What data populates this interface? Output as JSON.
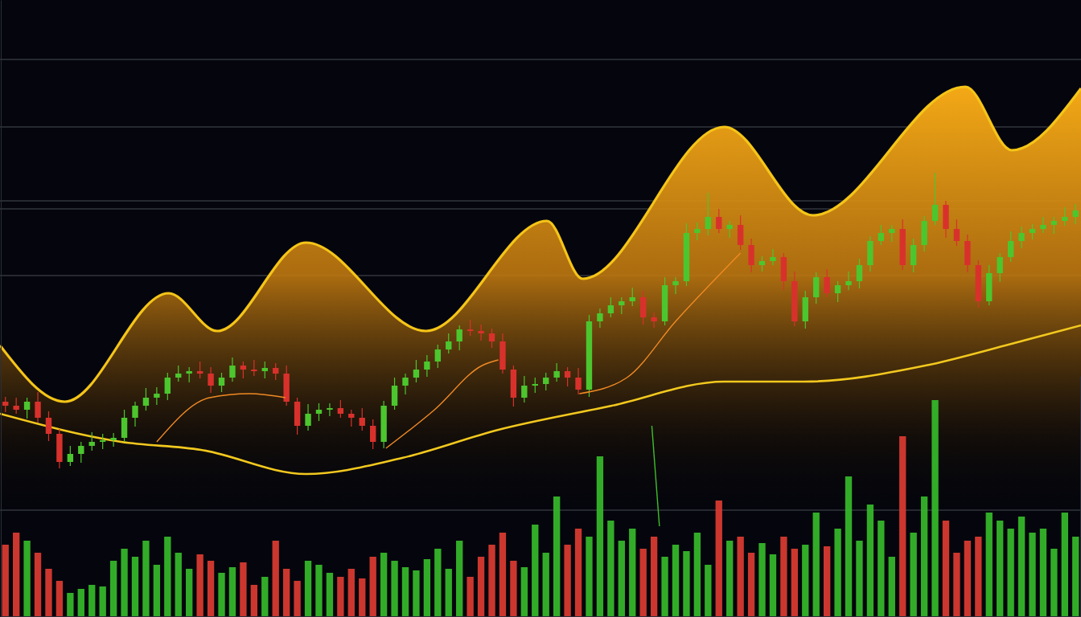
{
  "chart_data": {
    "type": "candlestick",
    "grid": true,
    "tick_labels": false,
    "xlim": [
      -0.5,
      99.5
    ],
    "ylim": [
      0,
      768
    ],
    "yticks": [
      694,
      610,
      518,
      508,
      425,
      133
    ],
    "y2lim": [
      0,
      300
    ],
    "x": [
      0,
      1,
      2,
      3,
      4,
      5,
      6,
      7,
      8,
      9,
      10,
      11,
      12,
      13,
      14,
      15,
      16,
      17,
      18,
      19,
      20,
      21,
      22,
      23,
      24,
      25,
      26,
      27,
      28,
      29,
      30,
      31,
      32,
      33,
      34,
      35,
      36,
      37,
      38,
      39,
      40,
      41,
      42,
      43,
      44,
      45,
      46,
      47,
      48,
      49,
      50,
      51,
      52,
      53,
      54,
      55,
      56,
      57,
      58,
      59,
      60,
      61,
      62,
      63,
      64,
      65,
      66,
      67,
      68,
      69,
      70,
      71,
      72,
      73,
      74,
      75,
      76,
      77,
      78,
      79,
      80,
      81,
      82,
      83,
      84,
      85,
      86,
      87,
      88,
      89,
      90,
      91,
      92,
      93,
      94,
      95,
      96,
      97,
      98,
      99
    ],
    "open": [
      268,
      263,
      258,
      268,
      248,
      228,
      193,
      203,
      213,
      218,
      220,
      223,
      248,
      263,
      273,
      278,
      298,
      303,
      306,
      303,
      288,
      298,
      313,
      308,
      306,
      310,
      303,
      268,
      238,
      253,
      258,
      260,
      253,
      248,
      238,
      218,
      263,
      288,
      298,
      308,
      318,
      333,
      343,
      358,
      356,
      353,
      343,
      308,
      273,
      288,
      290,
      298,
      306,
      298,
      283,
      368,
      378,
      388,
      393,
      398,
      373,
      368,
      413,
      418,
      478,
      483,
      498,
      483,
      488,
      463,
      438,
      443,
      448,
      418,
      368,
      398,
      423,
      403,
      413,
      418,
      438,
      468,
      478,
      483,
      438,
      463,
      493,
      513,
      483,
      468,
      438,
      393,
      428,
      448,
      468,
      478,
      483,
      488,
      493,
      498
    ],
    "high": [
      274,
      273,
      273,
      280,
      256,
      234,
      213,
      218,
      230,
      228,
      229,
      258,
      268,
      285,
      286,
      304,
      313,
      311,
      318,
      311,
      304,
      323,
      318,
      320,
      318,
      316,
      313,
      273,
      265,
      266,
      266,
      270,
      258,
      260,
      246,
      269,
      298,
      303,
      320,
      326,
      339,
      353,
      363,
      370,
      364,
      359,
      353,
      313,
      300,
      298,
      304,
      316,
      311,
      310,
      376,
      384,
      398,
      398,
      410,
      406,
      379,
      423,
      423,
      490,
      491,
      528,
      508,
      493,
      500,
      471,
      449,
      458,
      453,
      430,
      406,
      429,
      433,
      418,
      430,
      446,
      474,
      488,
      488,
      495,
      471,
      499,
      553,
      518,
      495,
      476,
      444,
      438,
      453,
      480,
      486,
      489,
      498,
      498,
      510,
      514
    ],
    "low": [
      255,
      253,
      247,
      242,
      219,
      185,
      188,
      192,
      207,
      209,
      212,
      218,
      237,
      257,
      264,
      270,
      293,
      292,
      297,
      279,
      280,
      293,
      297,
      300,
      297,
      295,
      263,
      227,
      232,
      244,
      250,
      248,
      237,
      232,
      209,
      210,
      258,
      277,
      292,
      299,
      310,
      328,
      332,
      350,
      344,
      335,
      303,
      262,
      267,
      279,
      282,
      293,
      287,
      277,
      274,
      360,
      373,
      377,
      387,
      364,
      360,
      363,
      402,
      412,
      469,
      475,
      478,
      472,
      457,
      429,
      430,
      438,
      407,
      362,
      359,
      390,
      398,
      392,
      407,
      409,
      430,
      463,
      467,
      432,
      429,
      455,
      488,
      472,
      462,
      429,
      385,
      388,
      417,
      442,
      459,
      470,
      478,
      477,
      487,
      489
    ],
    "close": [
      263,
      258,
      268,
      248,
      228,
      193,
      203,
      213,
      218,
      220,
      223,
      248,
      263,
      273,
      278,
      298,
      303,
      306,
      303,
      288,
      298,
      313,
      308,
      306,
      310,
      303,
      268,
      238,
      253,
      258,
      260,
      253,
      248,
      238,
      218,
      263,
      288,
      298,
      308,
      318,
      333,
      343,
      358,
      356,
      353,
      343,
      308,
      273,
      288,
      290,
      298,
      306,
      298,
      283,
      368,
      378,
      388,
      393,
      398,
      373,
      368,
      413,
      418,
      478,
      483,
      498,
      483,
      488,
      463,
      438,
      443,
      448,
      418,
      368,
      398,
      423,
      403,
      413,
      418,
      438,
      468,
      478,
      483,
      438,
      463,
      493,
      513,
      483,
      468,
      438,
      393,
      428,
      448,
      468,
      478,
      483,
      488,
      493,
      498,
      506
    ],
    "series": [
      {
        "type": "area",
        "color": "#f5c518",
        "x": [
          -0.5,
          5.5,
          15.1,
          19.6,
          27.8,
          38.9,
          50.1,
          53.4,
          66.5,
          74.7,
          88.8,
          93.1,
          99.5
        ],
        "values": [
          338,
          268,
          403,
          356,
          466,
          356,
          493,
          421,
          610,
          500,
          660,
          581,
          658
        ]
      },
      {
        "type": "line",
        "color": "#f2c81e",
        "x": [
          -0.5,
          10.7,
          18.1,
          27.8,
          36.7,
          45.6,
          56.1,
          66.5,
          73.9,
          85.1,
          92.5,
          99.5
        ],
        "values": [
          253,
          218,
          208,
          178,
          198,
          233,
          263,
          293,
          293,
          313,
          338,
          363
        ]
      },
      {
        "type": "line",
        "color": "#f08a24",
        "x": [
          14.0,
          18.9,
          22.6,
          25.9
        ],
        "values": [
          218,
          273,
          278,
          273
        ]
      },
      {
        "type": "line",
        "color": "#f08a24",
        "x": [
          35.2,
          39.7,
          44.1,
          45.6
        ],
        "values": [
          210,
          258,
          313,
          320
        ]
      },
      {
        "type": "line",
        "color": "#f08a24",
        "x": [
          53.1,
          57.5,
          62.0,
          68.0
        ],
        "values": [
          278,
          298,
          368,
          453
        ]
      },
      {
        "type": "line",
        "color": "#3fbf2a",
        "x": [
          59.8,
          60.5
        ],
        "values": [
          238,
          113
        ]
      },
      {
        "type": "bar",
        "axis": "y2",
        "values": [
          90,
          105,
          95,
          80,
          60,
          45,
          30,
          35,
          40,
          38,
          70,
          85,
          75,
          95,
          65,
          100,
          80,
          60,
          78,
          70,
          55,
          62,
          68,
          40,
          50,
          95,
          60,
          45,
          70,
          65,
          55,
          50,
          60,
          48,
          75,
          80,
          70,
          62,
          58,
          72,
          85,
          60,
          95,
          50,
          75,
          90,
          105,
          70,
          62,
          115,
          80,
          150,
          90,
          110,
          100,
          200,
          120,
          95,
          110,
          85,
          100,
          75,
          90,
          82,
          105,
          65,
          145,
          95,
          100,
          80,
          92,
          78,
          100,
          85,
          90,
          130,
          88,
          110,
          175,
          95,
          140,
          120,
          75,
          225,
          105,
          150,
          270,
          120,
          80,
          95,
          100,
          130,
          120,
          110,
          125,
          105,
          110,
          85,
          130,
          100
        ]
      }
    ]
  }
}
